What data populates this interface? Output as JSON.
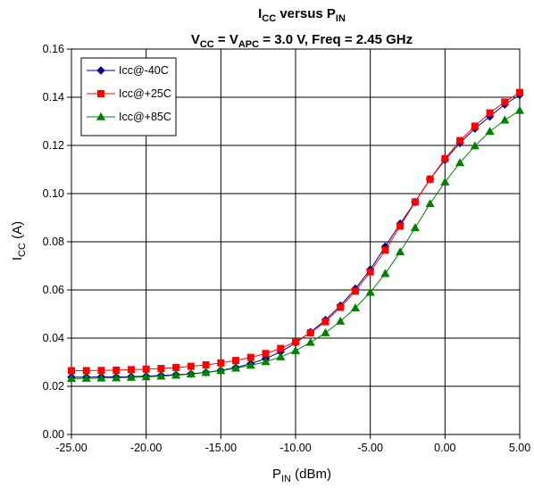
{
  "chart_data": {
    "type": "line",
    "title": {
      "parts": [
        {
          "text": "I",
          "sub": false
        },
        {
          "text": "CC",
          "sub": true
        },
        {
          "text": " versus P",
          "sub": false
        },
        {
          "text": "IN",
          "sub": true
        }
      ]
    },
    "subtitle": {
      "parts": [
        {
          "text": "V",
          "sub": false
        },
        {
          "text": "CC",
          "sub": true
        },
        {
          "text": " = V",
          "sub": false
        },
        {
          "text": "APC",
          "sub": true
        },
        {
          "text": " = 3.0 V, Freq = 2.45 GHz",
          "sub": false
        }
      ]
    },
    "xlabel": {
      "parts": [
        {
          "text": "P",
          "sub": false
        },
        {
          "text": "IN",
          "sub": true
        },
        {
          "text": " (dBm)",
          "sub": false
        }
      ]
    },
    "ylabel": {
      "parts": [
        {
          "text": "I",
          "sub": false
        },
        {
          "text": "CC",
          "sub": true
        },
        {
          "text": " (A)",
          "sub": false
        }
      ]
    },
    "xlim": [
      -25,
      5
    ],
    "ylim": [
      0,
      0.16
    ],
    "x_ticks": [
      -25,
      -20,
      -15,
      -10,
      -5,
      0,
      5
    ],
    "x_tick_labels": [
      "-25.00",
      "-20.00",
      "-15.00",
      "-10.00",
      "-5.00",
      "0.00",
      "5.00"
    ],
    "y_ticks": [
      0,
      0.02,
      0.04,
      0.06,
      0.08,
      0.1,
      0.12,
      0.14,
      0.16
    ],
    "y_tick_labels": [
      "0.00",
      "0.02",
      "0.04",
      "0.06",
      "0.08",
      "0.10",
      "0.12",
      "0.14",
      "0.16"
    ],
    "grid": true,
    "legend_position": "top-left",
    "x": [
      -25,
      -24,
      -23,
      -22,
      -21,
      -20,
      -19,
      -18,
      -17,
      -16,
      -15,
      -14,
      -13,
      -12,
      -11,
      -10,
      -9,
      -8,
      -7,
      -6,
      -5,
      -4,
      -3,
      -2,
      -1,
      0,
      1,
      2,
      3,
      4,
      5
    ],
    "series": [
      {
        "name": "Icc@-40C",
        "color": "#00008b",
        "marker": "diamond",
        "values": [
          0.0238,
          0.0238,
          0.0239,
          0.0239,
          0.024,
          0.0242,
          0.0245,
          0.0248,
          0.0252,
          0.0258,
          0.0266,
          0.0278,
          0.0294,
          0.0315,
          0.0343,
          0.038,
          0.0425,
          0.0475,
          0.0535,
          0.0605,
          0.0685,
          0.078,
          0.0875,
          0.0965,
          0.106,
          0.114,
          0.121,
          0.127,
          0.132,
          0.137,
          0.141
        ]
      },
      {
        "name": "Icc@+25C",
        "color": "#ff0000",
        "marker": "square",
        "values": [
          0.0265,
          0.0265,
          0.0266,
          0.0267,
          0.0269,
          0.0271,
          0.0274,
          0.0278,
          0.0283,
          0.0289,
          0.0297,
          0.0307,
          0.032,
          0.0336,
          0.0357,
          0.0385,
          0.0422,
          0.0468,
          0.0528,
          0.0595,
          0.0675,
          0.0765,
          0.0865,
          0.0965,
          0.106,
          0.1145,
          0.122,
          0.128,
          0.1335,
          0.138,
          0.142
        ]
      },
      {
        "name": "Icc@+85C",
        "color": "#008000",
        "marker": "triangle",
        "values": [
          0.0232,
          0.0233,
          0.0234,
          0.0235,
          0.0237,
          0.0239,
          0.0242,
          0.0246,
          0.0251,
          0.0257,
          0.0265,
          0.0275,
          0.0287,
          0.0302,
          0.0322,
          0.0348,
          0.0382,
          0.0422,
          0.047,
          0.0525,
          0.059,
          0.0668,
          0.0758,
          0.0858,
          0.0958,
          0.1048,
          0.1128,
          0.1198,
          0.1258,
          0.1305,
          0.1345
        ]
      }
    ]
  }
}
